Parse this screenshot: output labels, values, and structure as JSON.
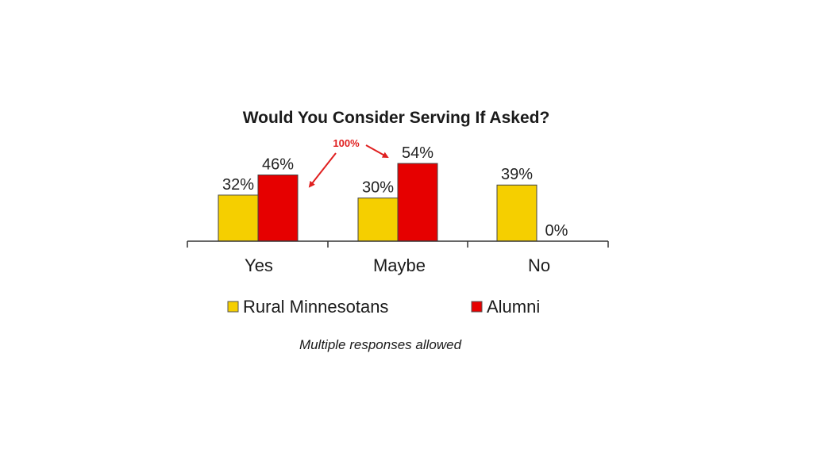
{
  "chart_data": {
    "type": "bar",
    "title": "Would You Consider Serving If Asked?",
    "categories": [
      "Yes",
      "Maybe",
      "No"
    ],
    "series": [
      {
        "name": "Rural Minnesotans",
        "values": [
          32,
          30,
          39
        ],
        "labels": [
          "32%",
          "30%",
          "39%"
        ],
        "color": "#f5cf00"
      },
      {
        "name": "Alumni",
        "values": [
          46,
          54,
          0
        ],
        "labels": [
          "46%",
          "54%",
          "0%"
        ],
        "color": "#e60000"
      }
    ],
    "ylim": [
      0,
      60
    ],
    "grid": false,
    "legend_placement": "bottom",
    "footnote": "Multiple responses allowed"
  },
  "annotation": {
    "text": "100%",
    "color": "#e02020"
  }
}
